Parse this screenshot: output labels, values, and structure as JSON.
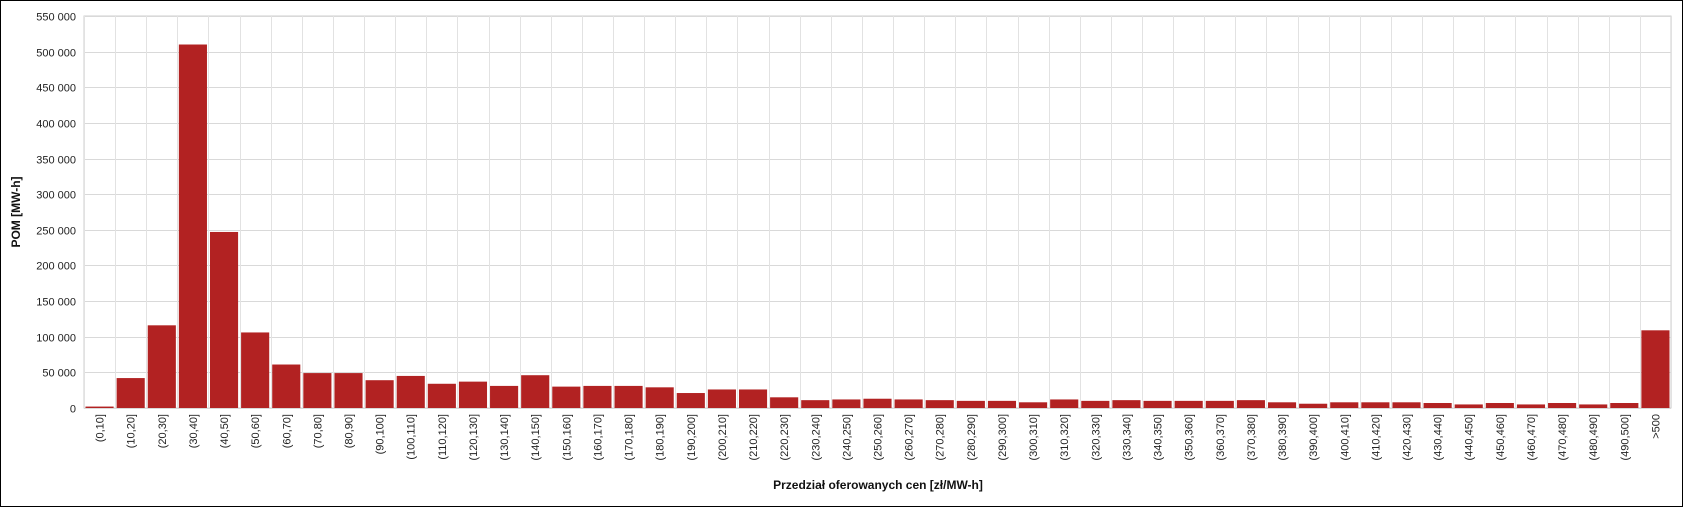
{
  "chart_data": {
    "type": "bar",
    "xlabel": "Przedział oferowanych cen [zł/MW-h]",
    "ylabel": "POM [MW-h]",
    "ylim": [
      0,
      550000
    ],
    "yticks": [
      0,
      50000,
      100000,
      150000,
      200000,
      250000,
      300000,
      350000,
      400000,
      450000,
      500000,
      550000
    ],
    "ytick_labels": [
      "0",
      "50 000",
      "100 000",
      "150 000",
      "200 000",
      "250 000",
      "300 000",
      "350 000",
      "400 000",
      "450 000",
      "500 000",
      "550 000"
    ],
    "grid": true,
    "bar_color": "#b22222",
    "categories": [
      "(0,10]",
      "(10,20]",
      "(20,30]",
      "(30,40]",
      "(40,50]",
      "(50,60]",
      "(60,70]",
      "(70,80]",
      "(80,90]",
      "(90,100]",
      "(100,110]",
      "(110,120]",
      "(120,130]",
      "(130,140]",
      "(140,150]",
      "(150,160]",
      "(160,170]",
      "(170,180]",
      "(180,190]",
      "(190,200]",
      "(200,210]",
      "(210,220]",
      "(220,230]",
      "(230,240]",
      "(240,250]",
      "(250,260]",
      "(260,270]",
      "(270,280]",
      "(280,290]",
      "(290,300]",
      "(300,310]",
      "(310,320]",
      "(320,330]",
      "(330,340]",
      "(340,350]",
      "(350,360]",
      "(360,370]",
      "(370,380]",
      "(380,390]",
      "(390,400]",
      "(400,410]",
      "(410,420]",
      "(420,430]",
      "(430,440]",
      "(440,450]",
      "(450,460]",
      "(460,470]",
      "(470,480]",
      "(480,490]",
      "(490,500]",
      ">500"
    ],
    "values": [
      2000,
      42000,
      116000,
      510000,
      247000,
      106000,
      61000,
      49000,
      49000,
      39000,
      45000,
      34000,
      37000,
      31000,
      46000,
      30000,
      31000,
      31000,
      29000,
      21000,
      26000,
      26000,
      15000,
      11000,
      12000,
      13000,
      12000,
      11000,
      10000,
      10000,
      8000,
      12000,
      10000,
      11000,
      10000,
      10000,
      10000,
      11000,
      8000,
      6000,
      8000,
      8000,
      8000,
      7000,
      5000,
      7000,
      5000,
      7000,
      5000,
      7000,
      109000
    ]
  }
}
